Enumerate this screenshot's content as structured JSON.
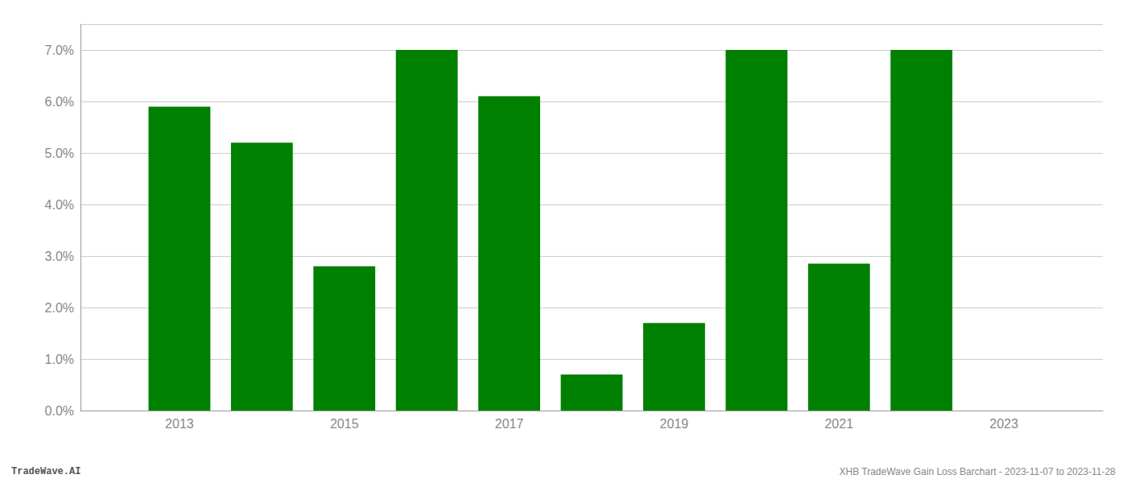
{
  "chart_data": {
    "type": "bar",
    "x": [
      2013,
      2014,
      2015,
      2016,
      2017,
      2018,
      2019,
      2020,
      2021,
      2022
    ],
    "values": [
      0.059,
      0.052,
      0.028,
      0.07,
      0.061,
      0.007,
      0.017,
      0.07,
      0.0285,
      0.07
    ],
    "color": "#008000",
    "xlim": [
      2011.8,
      2024.2
    ],
    "xticks": [
      2013,
      2015,
      2017,
      2019,
      2021,
      2023
    ],
    "ylim": [
      0.0,
      0.075
    ],
    "yticks": [
      {
        "value": 0.0,
        "label": "0.0%"
      },
      {
        "value": 0.01,
        "label": "1.0%"
      },
      {
        "value": 0.02,
        "label": "2.0%"
      },
      {
        "value": 0.03,
        "label": "3.0%"
      },
      {
        "value": 0.04,
        "label": "4.0%"
      },
      {
        "value": 0.05,
        "label": "5.0%"
      },
      {
        "value": 0.06,
        "label": "6.0%"
      },
      {
        "value": 0.07,
        "label": "7.0%"
      }
    ],
    "grid": true,
    "annotations": [
      "TradeWave.AI",
      "XHB TradeWave Gain Loss Barchart - 2023-11-07 to 2023-11-28"
    ]
  }
}
